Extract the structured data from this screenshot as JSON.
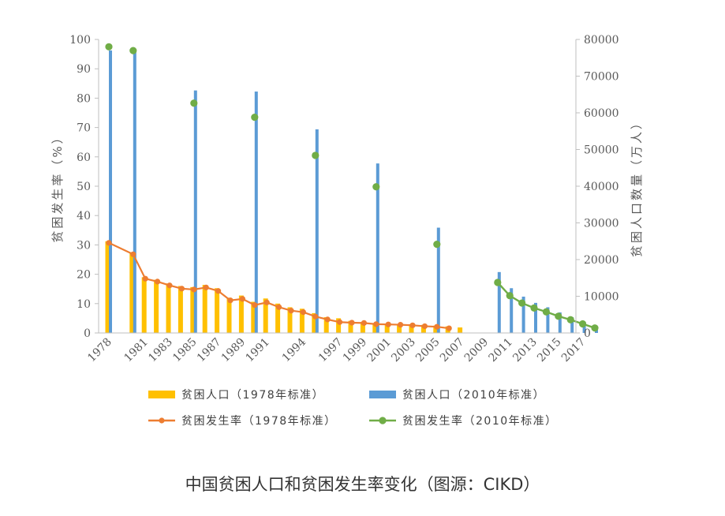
{
  "caption": "中国贫困人口和贫困发生率变化（图源：CIKD）",
  "colors": {
    "pop1978": "#FFC000",
    "pop2010": "#5B9BD5",
    "rate1978": "#ED7D31",
    "rate2010": "#70AD47",
    "axis": "#BFBFBF",
    "text": "#595959"
  },
  "chart_data": {
    "type": "bar",
    "title": "",
    "x_tick_labels": [
      "1978",
      "1981",
      "1983",
      "1985",
      "1987",
      "1989",
      "1991",
      "1994",
      "1997",
      "1999",
      "2001",
      "2003",
      "2005",
      "2007",
      "2009",
      "2011",
      "2013",
      "2015",
      "2017"
    ],
    "y_left": {
      "label": "贫困发生率（%）",
      "ylim": [
        0,
        100
      ],
      "ticks": [
        "0",
        "10",
        "20",
        "30",
        "40",
        "50",
        "60",
        "70",
        "80",
        "90",
        "100"
      ]
    },
    "y_right": {
      "label": "贫困人口数量（万人）",
      "ylim": [
        0,
        80000
      ],
      "ticks": [
        "0",
        "10000",
        "20000",
        "30000",
        "40000",
        "50000",
        "60000",
        "70000",
        "80000"
      ]
    },
    "legend": {
      "position": "bottom"
    },
    "series": [
      {
        "name": "贫困人口（1978年标准）",
        "type": "bar",
        "axis": "right",
        "points": [
          {
            "x": 1978,
            "y": 25000
          },
          {
            "x": 1980,
            "y": 22000
          },
          {
            "x": 1981,
            "y": 15200
          },
          {
            "x": 1982,
            "y": 14500
          },
          {
            "x": 1983,
            "y": 13500
          },
          {
            "x": 1984,
            "y": 12800
          },
          {
            "x": 1985,
            "y": 12500
          },
          {
            "x": 1986,
            "y": 13100
          },
          {
            "x": 1987,
            "y": 12200
          },
          {
            "x": 1988,
            "y": 9600
          },
          {
            "x": 1989,
            "y": 10200
          },
          {
            "x": 1990,
            "y": 8500
          },
          {
            "x": 1991,
            "y": 9400
          },
          {
            "x": 1992,
            "y": 8000
          },
          {
            "x": 1993,
            "y": 7000
          },
          {
            "x": 1994,
            "y": 6600
          },
          {
            "x": 1995,
            "y": 5400
          },
          {
            "x": 1996,
            "y": 4300
          },
          {
            "x": 1997,
            "y": 4000
          },
          {
            "x": 1998,
            "y": 3300
          },
          {
            "x": 1999,
            "y": 3000
          },
          {
            "x": 2000,
            "y": 2700
          },
          {
            "x": 2001,
            "y": 2550
          },
          {
            "x": 2002,
            "y": 2450
          },
          {
            "x": 2003,
            "y": 2400
          },
          {
            "x": 2004,
            "y": 2200
          },
          {
            "x": 2005,
            "y": 2000
          },
          {
            "x": 2006,
            "y": 1800
          },
          {
            "x": 2007,
            "y": 1500
          }
        ]
      },
      {
        "name": "贫困人口（2010年标准）",
        "type": "bar",
        "axis": "right",
        "points": [
          {
            "x": 1978,
            "y": 77000
          },
          {
            "x": 1980,
            "y": 76500
          },
          {
            "x": 1985,
            "y": 66100
          },
          {
            "x": 1990,
            "y": 65800
          },
          {
            "x": 1995,
            "y": 55500
          },
          {
            "x": 2000,
            "y": 46200
          },
          {
            "x": 2005,
            "y": 28700
          },
          {
            "x": 2010,
            "y": 16600
          },
          {
            "x": 2011,
            "y": 12200
          },
          {
            "x": 2012,
            "y": 9900
          },
          {
            "x": 2013,
            "y": 8200
          },
          {
            "x": 2014,
            "y": 7000
          },
          {
            "x": 2015,
            "y": 5600
          },
          {
            "x": 2016,
            "y": 4300
          },
          {
            "x": 2017,
            "y": 3000
          },
          {
            "x": 2018,
            "y": 1660
          }
        ]
      },
      {
        "name": "贫困发生率（1978年标准）",
        "type": "line",
        "axis": "left",
        "points": [
          {
            "x": 1978,
            "y": 30.7
          },
          {
            "x": 1980,
            "y": 26.8
          },
          {
            "x": 1981,
            "y": 18.5
          },
          {
            "x": 1982,
            "y": 17.5
          },
          {
            "x": 1983,
            "y": 16.2
          },
          {
            "x": 1984,
            "y": 15.1
          },
          {
            "x": 1985,
            "y": 14.8
          },
          {
            "x": 1986,
            "y": 15.5
          },
          {
            "x": 1987,
            "y": 14.3
          },
          {
            "x": 1988,
            "y": 11.1
          },
          {
            "x": 1989,
            "y": 11.6
          },
          {
            "x": 1990,
            "y": 9.5
          },
          {
            "x": 1991,
            "y": 10.4
          },
          {
            "x": 1992,
            "y": 8.8
          },
          {
            "x": 1993,
            "y": 7.6
          },
          {
            "x": 1994,
            "y": 7.1
          },
          {
            "x": 1995,
            "y": 5.6
          },
          {
            "x": 1996,
            "y": 4.6
          },
          {
            "x": 1997,
            "y": 3.7
          },
          {
            "x": 1998,
            "y": 3.5
          },
          {
            "x": 1999,
            "y": 3.4
          },
          {
            "x": 2000,
            "y": 3.0
          },
          {
            "x": 2001,
            "y": 2.9
          },
          {
            "x": 2002,
            "y": 2.8
          },
          {
            "x": 2003,
            "y": 2.6
          },
          {
            "x": 2004,
            "y": 2.3
          },
          {
            "x": 2005,
            "y": 2.1
          },
          {
            "x": 2006,
            "y": 1.6
          }
        ]
      },
      {
        "name": "贫困发生率（2010年标准）",
        "type": "line",
        "axis": "left",
        "points": [
          {
            "x": 1978,
            "y": 97.5
          },
          {
            "x": 1980,
            "y": 96.2
          },
          {
            "x": 1985,
            "y": 78.3
          },
          {
            "x": 1990,
            "y": 73.5
          },
          {
            "x": 1995,
            "y": 60.5
          },
          {
            "x": 2000,
            "y": 49.8
          },
          {
            "x": 2005,
            "y": 30.2
          },
          {
            "x": 2010,
            "y": 17.2
          },
          {
            "x": 2011,
            "y": 12.7
          },
          {
            "x": 2012,
            "y": 10.2
          },
          {
            "x": 2013,
            "y": 8.5
          },
          {
            "x": 2014,
            "y": 7.2
          },
          {
            "x": 2015,
            "y": 5.7
          },
          {
            "x": 2016,
            "y": 4.5
          },
          {
            "x": 2017,
            "y": 3.1
          },
          {
            "x": 2018,
            "y": 1.7
          }
        ]
      }
    ]
  }
}
